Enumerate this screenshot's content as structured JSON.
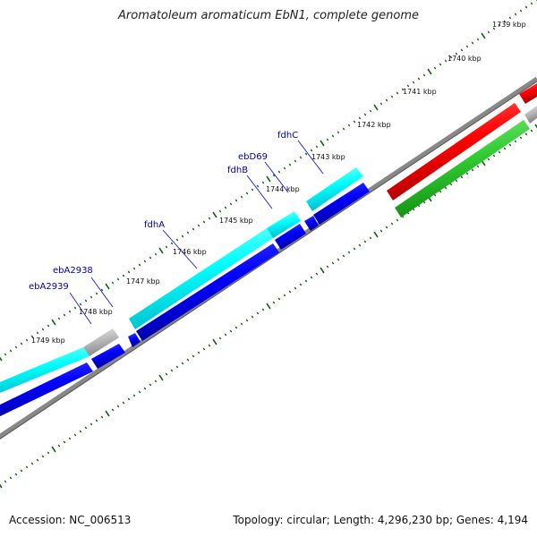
{
  "title": "Aromatoleum aromaticum EbN1, complete genome",
  "footer": {
    "accession": "Accession: NC_006513",
    "topology": "Topology: circular; Length: 4,296,230 bp; Genes: 4,194"
  },
  "ticks": [
    "1739 kbp",
    "1740 kbp",
    "1741 kbp",
    "1742 kbp",
    "1743 kbp",
    "1744 kbp",
    "1745 kbp",
    "1746 kbp",
    "1747 kbp",
    "1748 kbp",
    "1749 kbp"
  ],
  "gene_labels": [
    "fdhC",
    "ebD69",
    "fdhB",
    "fdhA",
    "ebA2938",
    "ebA2939"
  ],
  "colors": {
    "cds": "#00ffff",
    "gene": "#0000ff",
    "trna": "#ff0000",
    "rrna": "#33cc33",
    "pseudo": "#bbbbbb",
    "backbone": "#888888",
    "tick": "#006600",
    "label": "#0000aa"
  }
}
